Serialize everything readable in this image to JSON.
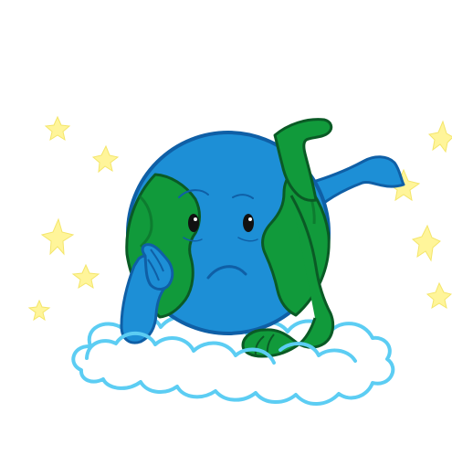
{
  "colors": {
    "background": "#ffffff",
    "ocean": "#1d8fd6",
    "ocean_dark": "#146fb3",
    "land": "#119a3b",
    "land_dark": "#0b6f2b",
    "outline": "#0f5fa6",
    "land_outline": "#0a5a25",
    "cloud_stroke": "#5ccdf3",
    "cloud_fill": "#ffffff",
    "star": "#fff59a",
    "eye": "#111111"
  },
  "illustration": {
    "subject": "earth-character",
    "expression": "sad",
    "pose": "resting-on-cloud",
    "accessories": [
      "cloud",
      "sparkle-stars"
    ]
  }
}
